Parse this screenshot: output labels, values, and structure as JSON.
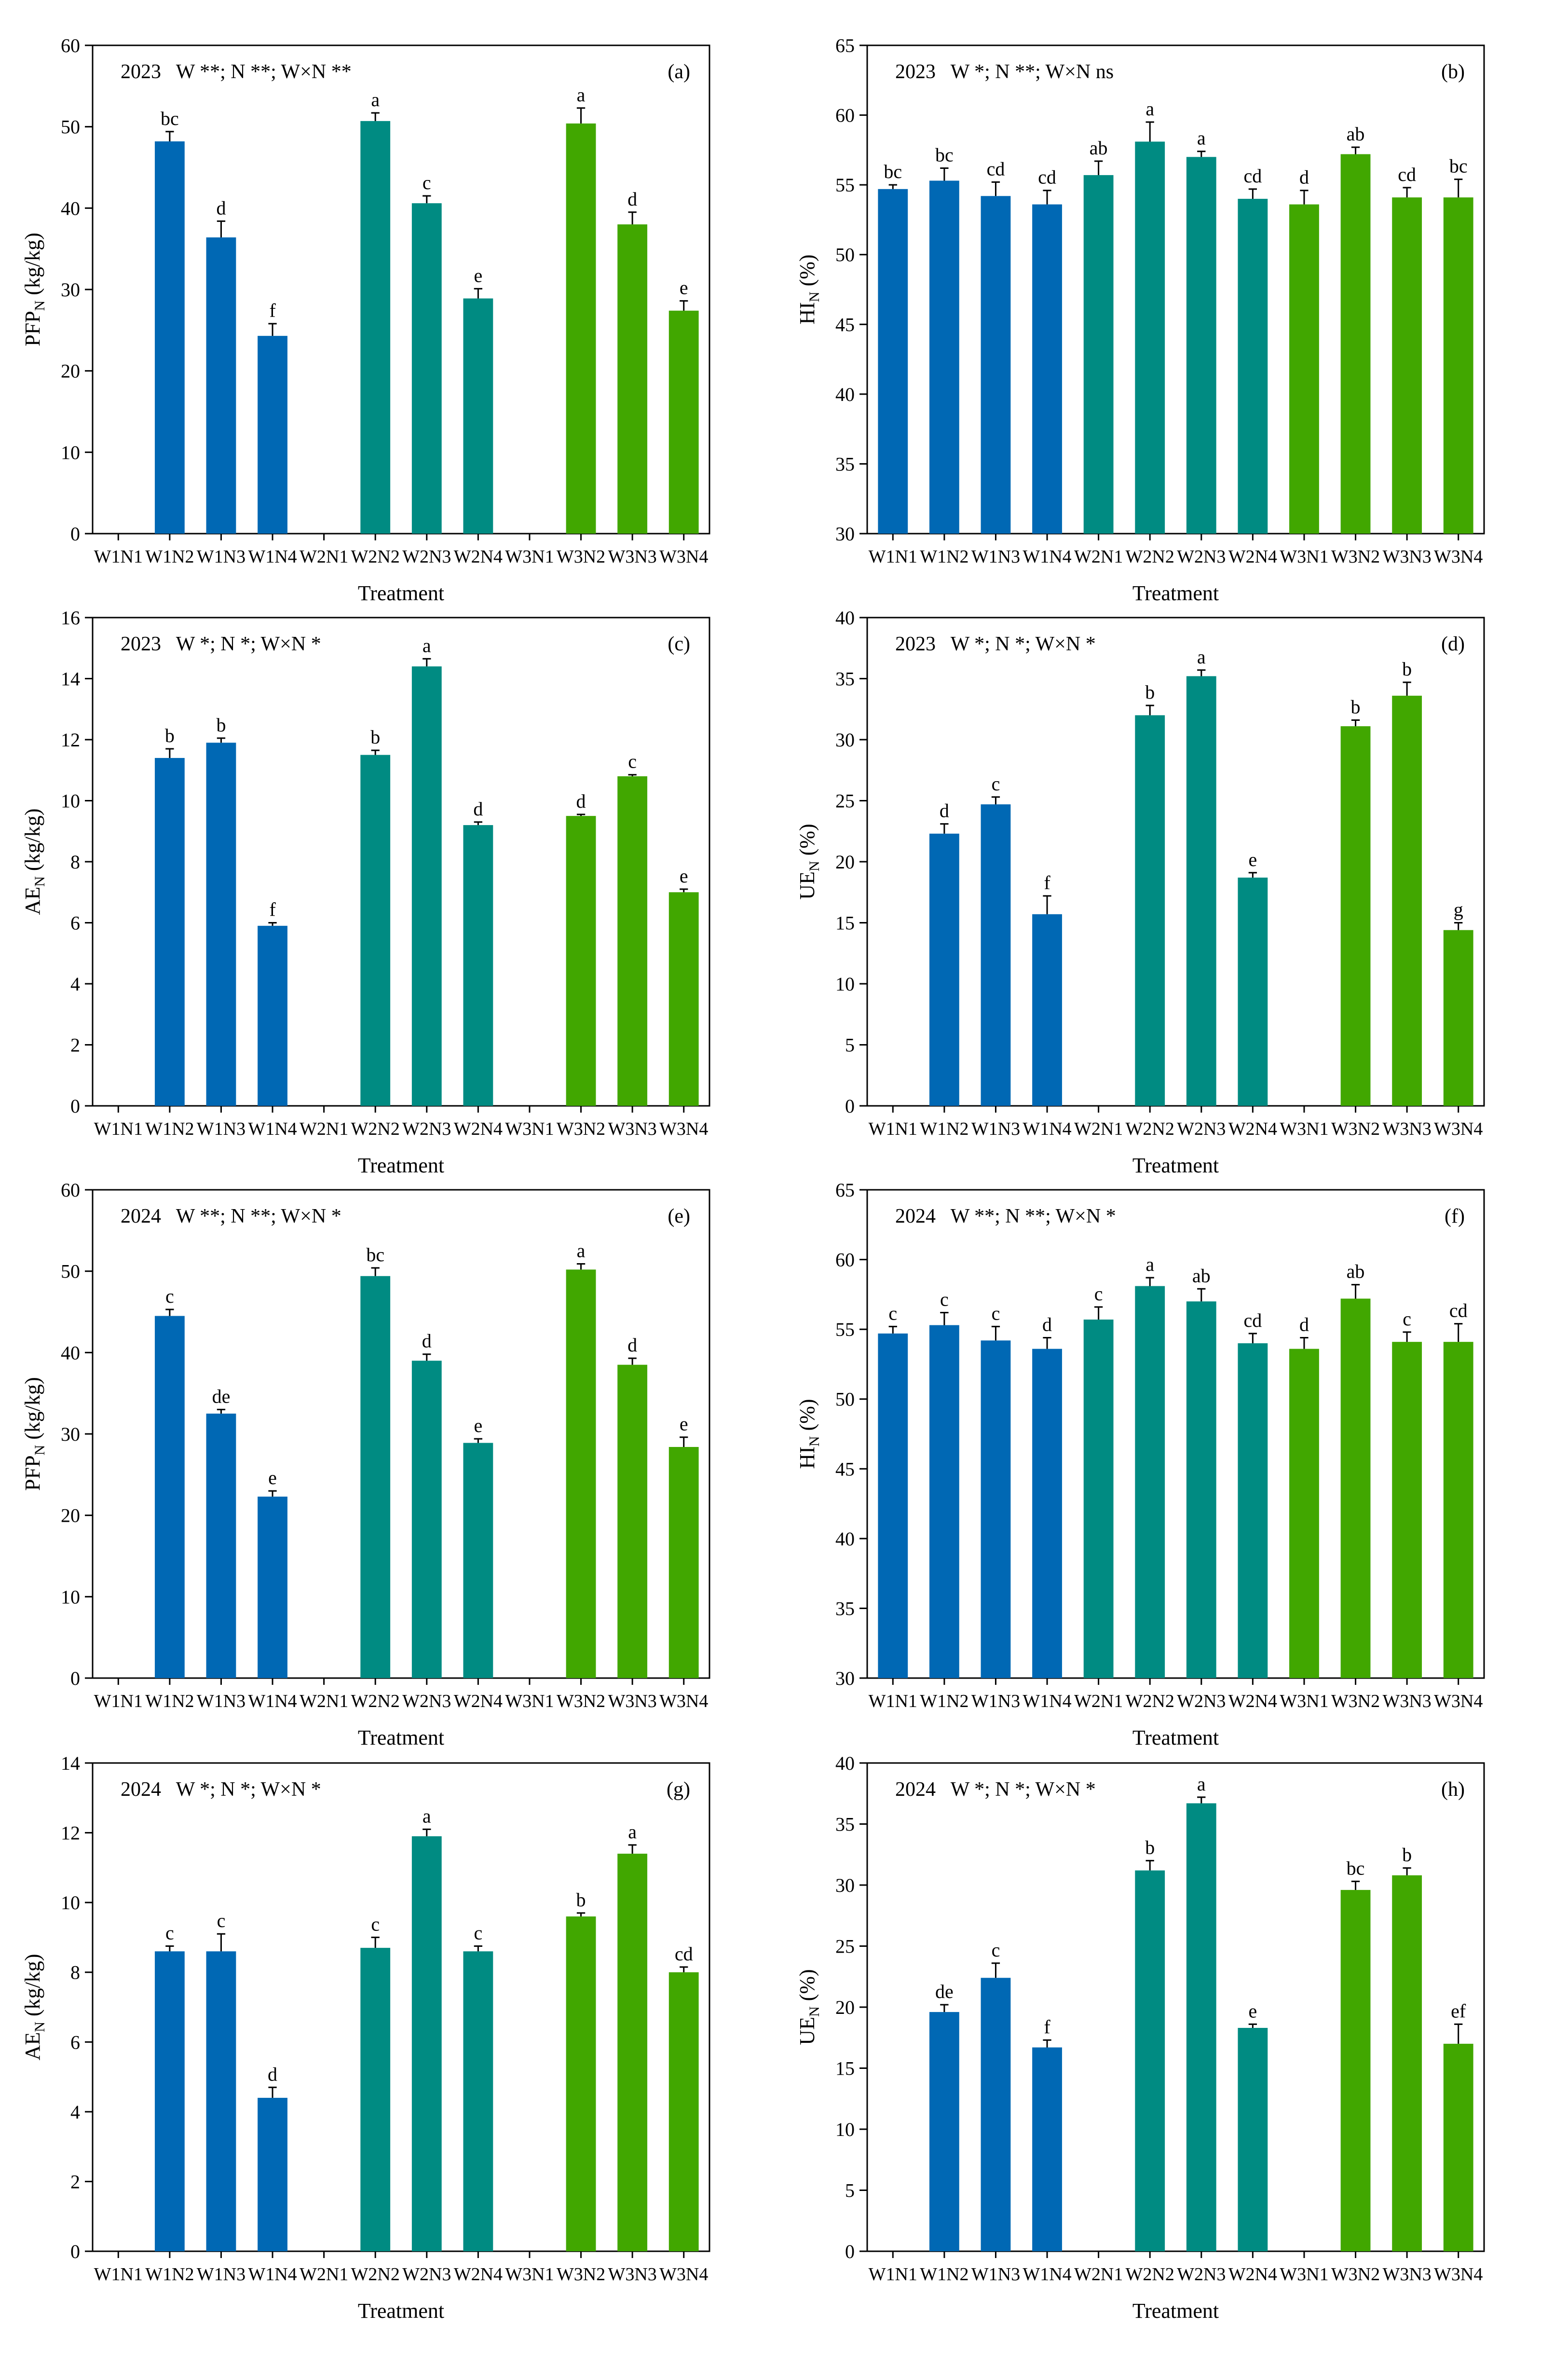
{
  "colors": {
    "W1": "#0068b4",
    "W2": "#008b82",
    "W3": "#41a700",
    "axis": "#000000"
  },
  "chart_data": [
    {
      "id": "a",
      "type": "bar",
      "panel_label": "(a)",
      "annotation": "2023   W **; N **; W×N **",
      "ylabel_main": "PFP",
      "ylabel_sub": "N",
      "ylabel_unit": " (kg/kg)",
      "xlabel": "Treatment",
      "categories": [
        "W1N1",
        "W1N2",
        "W1N3",
        "W1N4",
        "W2N1",
        "W2N2",
        "W2N3",
        "W2N4",
        "W3N1",
        "W3N2",
        "W3N3",
        "W3N4"
      ],
      "groups": [
        "W1",
        "W1",
        "W1",
        "W1",
        "W2",
        "W2",
        "W2",
        "W2",
        "W3",
        "W3",
        "W3",
        "W3"
      ],
      "ylim": [
        0,
        60
      ],
      "yticks": [
        0,
        10,
        20,
        30,
        40,
        50,
        60
      ],
      "values": [
        null,
        48.2,
        36.4,
        24.3,
        null,
        50.7,
        40.6,
        28.9,
        null,
        50.4,
        38.0,
        27.4
      ],
      "errors": [
        null,
        1.2,
        2.0,
        1.5,
        null,
        1.0,
        0.9,
        1.2,
        null,
        1.9,
        1.5,
        1.2
      ],
      "letters": [
        "",
        "bc",
        "d",
        "f",
        "",
        "a",
        "c",
        "e",
        "",
        "a",
        "d",
        "e"
      ]
    },
    {
      "id": "b",
      "type": "bar",
      "panel_label": "(b)",
      "annotation": "2023   W *; N **; W×N ns",
      "ylabel_main": "HI",
      "ylabel_sub": "N",
      "ylabel_unit": " (%)",
      "xlabel": "Treatment",
      "categories": [
        "W1N1",
        "W1N2",
        "W1N3",
        "W1N4",
        "W2N1",
        "W2N2",
        "W2N3",
        "W2N4",
        "W3N1",
        "W3N2",
        "W3N3",
        "W3N4"
      ],
      "groups": [
        "W1",
        "W1",
        "W1",
        "W1",
        "W2",
        "W2",
        "W2",
        "W2",
        "W3",
        "W3",
        "W3",
        "W3"
      ],
      "ylim": [
        30,
        65
      ],
      "yticks": [
        30,
        35,
        40,
        45,
        50,
        55,
        60,
        65
      ],
      "values": [
        54.7,
        55.3,
        54.2,
        53.6,
        55.7,
        58.1,
        57.0,
        54.0,
        53.6,
        57.2,
        54.1,
        54.1
      ],
      "errors": [
        0.3,
        0.9,
        1.0,
        1.0,
        1.0,
        1.4,
        0.4,
        0.7,
        1.0,
        0.5,
        0.7,
        1.3
      ],
      "letters": [
        "bc",
        "bc",
        "cd",
        "cd",
        "ab",
        "a",
        "a",
        "cd",
        "d",
        "ab",
        "cd",
        "bc"
      ]
    },
    {
      "id": "c",
      "type": "bar",
      "panel_label": "(c)",
      "annotation": "2023   W *; N *; W×N *",
      "ylabel_main": "AE",
      "ylabel_sub": "N",
      "ylabel_unit": " (kg/kg)",
      "xlabel": "Treatment",
      "categories": [
        "W1N1",
        "W1N2",
        "W1N3",
        "W1N4",
        "W2N1",
        "W2N2",
        "W2N3",
        "W2N4",
        "W3N1",
        "W3N2",
        "W3N3",
        "W3N4"
      ],
      "groups": [
        "W1",
        "W1",
        "W1",
        "W1",
        "W2",
        "W2",
        "W2",
        "W2",
        "W3",
        "W3",
        "W3",
        "W3"
      ],
      "ylim": [
        0,
        16
      ],
      "yticks": [
        0,
        2,
        4,
        6,
        8,
        10,
        12,
        14,
        16
      ],
      "values": [
        null,
        11.4,
        11.9,
        5.9,
        null,
        11.5,
        14.4,
        9.2,
        null,
        9.5,
        10.8,
        7.0
      ],
      "errors": [
        null,
        0.3,
        0.15,
        0.1,
        null,
        0.15,
        0.25,
        0.1,
        null,
        0.05,
        0.05,
        0.1
      ],
      "letters": [
        "",
        "b",
        "b",
        "f",
        "",
        "b",
        "a",
        "d",
        "",
        "d",
        "c",
        "e"
      ]
    },
    {
      "id": "d",
      "type": "bar",
      "panel_label": "(d)",
      "annotation": "2023   W *; N *; W×N *",
      "ylabel_main": "UE",
      "ylabel_sub": "N",
      "ylabel_unit": " (%)",
      "xlabel": "Treatment",
      "categories": [
        "W1N1",
        "W1N2",
        "W1N3",
        "W1N4",
        "W2N1",
        "W2N2",
        "W2N3",
        "W2N4",
        "W3N1",
        "W3N2",
        "W3N3",
        "W3N4"
      ],
      "groups": [
        "W1",
        "W1",
        "W1",
        "W1",
        "W2",
        "W2",
        "W2",
        "W2",
        "W3",
        "W3",
        "W3",
        "W3"
      ],
      "ylim": [
        0,
        40
      ],
      "yticks": [
        0,
        5,
        10,
        15,
        20,
        25,
        30,
        35,
        40
      ],
      "values": [
        null,
        22.3,
        24.7,
        15.7,
        null,
        32.0,
        35.2,
        18.7,
        null,
        31.1,
        33.6,
        14.4
      ],
      "errors": [
        null,
        0.8,
        0.6,
        1.5,
        null,
        0.8,
        0.5,
        0.4,
        null,
        0.5,
        1.1,
        0.6
      ],
      "letters": [
        "",
        "d",
        "c",
        "f",
        "",
        "b",
        "a",
        "e",
        "",
        "b",
        "b",
        "g"
      ]
    },
    {
      "id": "e",
      "type": "bar",
      "panel_label": "(e)",
      "annotation": "2024   W **; N **; W×N *",
      "ylabel_main": "PFP",
      "ylabel_sub": "N",
      "ylabel_unit": " (kg/kg)",
      "xlabel": "Treatment",
      "categories": [
        "W1N1",
        "W1N2",
        "W1N3",
        "W1N4",
        "W2N1",
        "W2N2",
        "W2N3",
        "W2N4",
        "W3N1",
        "W3N2",
        "W3N3",
        "W3N4"
      ],
      "groups": [
        "W1",
        "W1",
        "W1",
        "W1",
        "W2",
        "W2",
        "W2",
        "W2",
        "W3",
        "W3",
        "W3",
        "W3"
      ],
      "ylim": [
        0,
        60
      ],
      "yticks": [
        0,
        10,
        20,
        30,
        40,
        50,
        60
      ],
      "values": [
        null,
        44.5,
        32.5,
        22.3,
        null,
        49.4,
        39.0,
        28.9,
        null,
        50.2,
        38.5,
        28.4
      ],
      "errors": [
        null,
        0.8,
        0.5,
        0.7,
        null,
        1.0,
        0.8,
        0.5,
        null,
        0.7,
        0.8,
        1.2
      ],
      "letters": [
        "",
        "c",
        "de",
        "e",
        "",
        "bc",
        "d",
        "e",
        "",
        "a",
        "d",
        "e"
      ]
    },
    {
      "id": "f",
      "type": "bar",
      "panel_label": "(f)",
      "annotation": "2024   W **; N **; W×N *",
      "ylabel_main": "HI",
      "ylabel_sub": "N",
      "ylabel_unit": " (%)",
      "xlabel": "Treatment",
      "categories": [
        "W1N1",
        "W1N2",
        "W1N3",
        "W1N4",
        "W2N1",
        "W2N2",
        "W2N3",
        "W2N4",
        "W3N1",
        "W3N2",
        "W3N3",
        "W3N4"
      ],
      "groups": [
        "W1",
        "W1",
        "W1",
        "W1",
        "W2",
        "W2",
        "W2",
        "W2",
        "W3",
        "W3",
        "W3",
        "W3"
      ],
      "ylim": [
        30,
        65
      ],
      "yticks": [
        30,
        35,
        40,
        45,
        50,
        55,
        60,
        65
      ],
      "values": [
        54.7,
        55.3,
        54.2,
        53.6,
        55.7,
        58.1,
        57.0,
        54.0,
        53.6,
        57.2,
        54.1,
        54.1
      ],
      "errors": [
        0.5,
        0.9,
        1.0,
        0.8,
        0.9,
        0.6,
        0.9,
        0.7,
        0.8,
        1.0,
        0.7,
        1.3
      ],
      "letters": [
        "c",
        "c",
        "c",
        "d",
        "c",
        "a",
        "ab",
        "cd",
        "d",
        "ab",
        "c",
        "cd"
      ]
    },
    {
      "id": "g",
      "type": "bar",
      "panel_label": "(g)",
      "annotation": "2024   W *; N *; W×N *",
      "ylabel_main": "AE",
      "ylabel_sub": "N",
      "ylabel_unit": " (kg/kg)",
      "xlabel": "Treatment",
      "categories": [
        "W1N1",
        "W1N2",
        "W1N3",
        "W1N4",
        "W2N1",
        "W2N2",
        "W2N3",
        "W2N4",
        "W3N1",
        "W3N2",
        "W3N3",
        "W3N4"
      ],
      "groups": [
        "W1",
        "W1",
        "W1",
        "W1",
        "W2",
        "W2",
        "W2",
        "W2",
        "W3",
        "W3",
        "W3",
        "W3"
      ],
      "ylim": [
        0,
        14
      ],
      "yticks": [
        0,
        2,
        4,
        6,
        8,
        10,
        12,
        14
      ],
      "values": [
        null,
        8.6,
        8.6,
        4.4,
        null,
        8.7,
        11.9,
        8.6,
        null,
        9.6,
        11.4,
        8.0
      ],
      "errors": [
        null,
        0.15,
        0.5,
        0.3,
        null,
        0.3,
        0.2,
        0.15,
        null,
        0.1,
        0.25,
        0.15
      ],
      "letters": [
        "",
        "c",
        "c",
        "d",
        "",
        "c",
        "a",
        "c",
        "",
        "b",
        "a",
        "cd"
      ]
    },
    {
      "id": "h",
      "type": "bar",
      "panel_label": "(h)",
      "annotation": "2024   W *; N *; W×N *",
      "ylabel_main": "UE",
      "ylabel_sub": "N",
      "ylabel_unit": " (%)",
      "xlabel": "Treatment",
      "categories": [
        "W1N1",
        "W1N2",
        "W1N3",
        "W1N4",
        "W2N1",
        "W2N2",
        "W2N3",
        "W2N4",
        "W3N1",
        "W3N2",
        "W3N3",
        "W3N4"
      ],
      "groups": [
        "W1",
        "W1",
        "W1",
        "W1",
        "W2",
        "W2",
        "W2",
        "W2",
        "W3",
        "W3",
        "W3",
        "W3"
      ],
      "ylim": [
        0,
        40
      ],
      "yticks": [
        0,
        5,
        10,
        15,
        20,
        25,
        30,
        35,
        40
      ],
      "values": [
        null,
        19.6,
        22.4,
        16.7,
        null,
        31.2,
        36.7,
        18.3,
        null,
        29.6,
        30.8,
        17.0
      ],
      "errors": [
        null,
        0.6,
        1.2,
        0.6,
        null,
        0.8,
        0.5,
        0.3,
        null,
        0.7,
        0.6,
        1.6
      ],
      "letters": [
        "",
        "de",
        "c",
        "f",
        "",
        "b",
        "a",
        "e",
        "",
        "bc",
        "b",
        "ef"
      ]
    }
  ]
}
